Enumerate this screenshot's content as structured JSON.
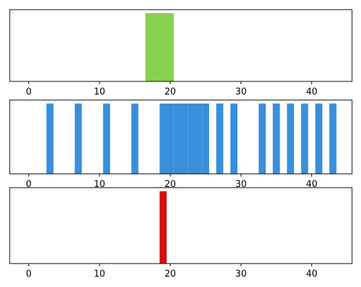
{
  "chart_data": [
    {
      "type": "bar",
      "x": [
        17,
        18,
        19,
        20
      ],
      "values": [
        1,
        1,
        1,
        1
      ],
      "color": "#88d14b",
      "xlim": [
        -2.7,
        45.7
      ],
      "ylim": [
        0,
        1.05
      ],
      "xticks": [
        0,
        10,
        20,
        30,
        40
      ]
    },
    {
      "type": "bar",
      "x": [
        3,
        7,
        11,
        15,
        19,
        20,
        21,
        22,
        23,
        24,
        25,
        27,
        29,
        33,
        35,
        37,
        39,
        41,
        43
      ],
      "values": [
        1,
        1,
        1,
        1,
        1,
        1,
        1,
        1,
        1,
        1,
        1,
        1,
        1,
        1,
        1,
        1,
        1,
        1,
        1
      ],
      "color": "#3a8fdb",
      "xlim": [
        -2.7,
        45.7
      ],
      "ylim": [
        0,
        1.05
      ],
      "xticks": [
        0,
        10,
        20,
        30,
        40
      ]
    },
    {
      "type": "bar",
      "x": [
        19
      ],
      "values": [
        1
      ],
      "color": "#d40f0f",
      "xlim": [
        -2.7,
        45.7
      ],
      "ylim": [
        0,
        1.05
      ],
      "xticks": [
        0,
        10,
        20,
        30,
        40
      ]
    }
  ]
}
